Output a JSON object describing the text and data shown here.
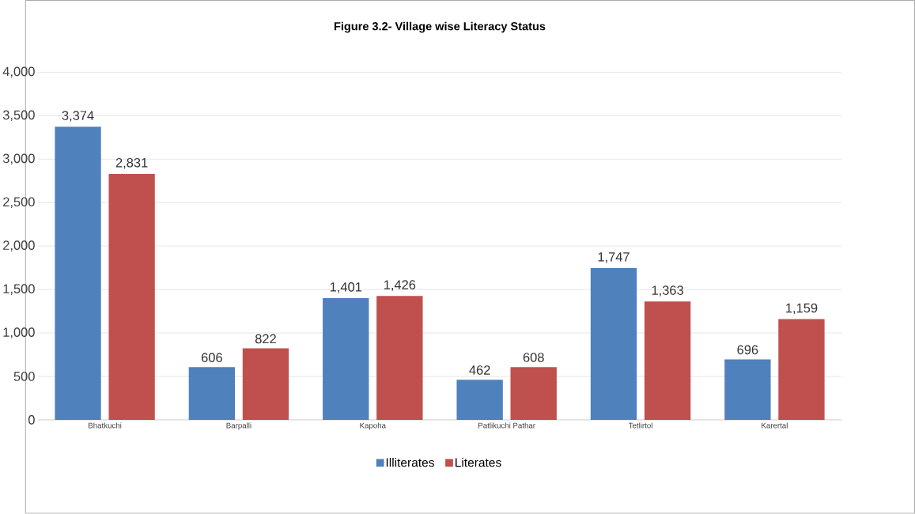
{
  "chart_data": {
    "type": "bar",
    "title": "Figure 3.2- Village wise Literacy Status",
    "categories": [
      "Bhatkuchi",
      "Barpalli",
      "Kapoha",
      "Patlikuchi Pathar",
      "Tetlirtol",
      "Karertal"
    ],
    "series": [
      {
        "name": "Illiterates",
        "color": "#4f81bd",
        "values": [
          3374,
          606,
          1401,
          462,
          1747,
          696
        ],
        "value_labels": [
          "3,374",
          "606",
          "1,401",
          "462",
          "1,747",
          "696"
        ]
      },
      {
        "name": "Literates",
        "color": "#c0504d",
        "values": [
          2831,
          822,
          1426,
          608,
          1363,
          1159
        ],
        "value_labels": [
          "2,831",
          "822",
          "1,426",
          "608",
          "1,363",
          "1,159"
        ]
      }
    ],
    "ylim": [
      0,
      4000
    ],
    "yticks": [
      0,
      500,
      {
        "value": 1000,
        "label": "1,000"
      },
      {
        "value": 1500,
        "label": "1,500"
      },
      {
        "value": 2000,
        "label": "2,000"
      },
      {
        "value": 2500,
        "label": "2,500"
      },
      {
        "value": 3000,
        "label": "3,000"
      },
      {
        "value": 3500,
        "label": "3,500"
      },
      {
        "value": 4000,
        "label": "4,000"
      }
    ],
    "grid": "y",
    "legend": "bottom"
  }
}
